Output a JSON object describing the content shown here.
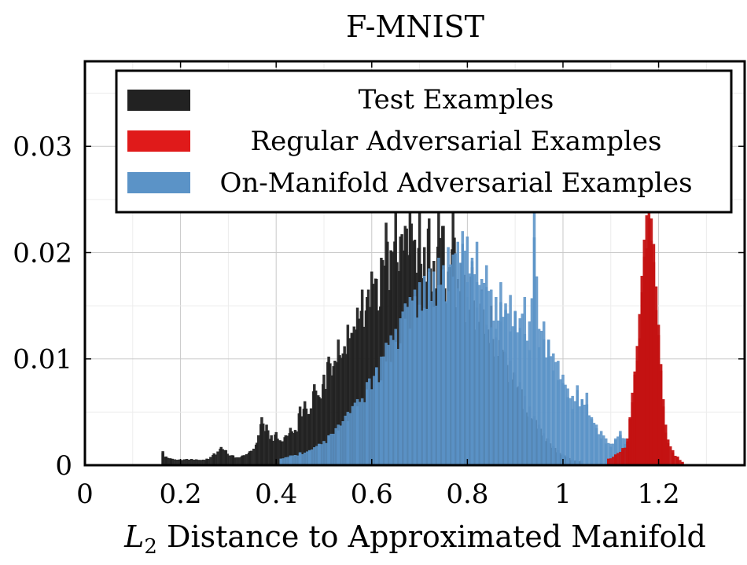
{
  "chart_data": {
    "type": "bar",
    "title": "F-MNIST",
    "xlabel_var": "L",
    "xlabel_sub": "2",
    "xlabel_text": " Distance to Approximated Manifold",
    "ylabel": "",
    "xlim": [
      0,
      1.38
    ],
    "ylim": [
      0,
      0.038
    ],
    "xticks": [
      0,
      0.2,
      0.4,
      0.6,
      0.8,
      1,
      1.2
    ],
    "xtick_labels": [
      "0",
      "0.2",
      "0.4",
      "0.6",
      "0.8",
      "1",
      "1.2"
    ],
    "yticks": [
      0,
      0.01,
      0.02,
      0.03
    ],
    "ytick_labels": [
      "0",
      "0.01",
      "0.02",
      "0.03"
    ],
    "grid": true,
    "legend_position": "top-center",
    "bin_width": 0.005,
    "series": [
      {
        "name": "Test Examples",
        "color": "#222222",
        "peaks": [
          {
            "x": 0.163,
            "y": 0.0013
          },
          {
            "x": 0.17,
            "y": 0.0008
          },
          {
            "x": 0.18,
            "y": 0.0006
          },
          {
            "x": 0.255,
            "y": 0.0006
          },
          {
            "x": 0.27,
            "y": 0.0011
          },
          {
            "x": 0.285,
            "y": 0.0017
          },
          {
            "x": 0.295,
            "y": 0.0014
          },
          {
            "x": 0.31,
            "y": 0.0009
          },
          {
            "x": 0.33,
            "y": 0.0009
          },
          {
            "x": 0.345,
            "y": 0.0013
          },
          {
            "x": 0.36,
            "y": 0.0021
          },
          {
            "x": 0.37,
            "y": 0.0045
          },
          {
            "x": 0.38,
            "y": 0.0038
          },
          {
            "x": 0.39,
            "y": 0.0028
          },
          {
            "x": 0.4,
            "y": 0.0031
          },
          {
            "x": 0.41,
            "y": 0.0022
          },
          {
            "x": 0.42,
            "y": 0.0028
          },
          {
            "x": 0.43,
            "y": 0.0035
          },
          {
            "x": 0.44,
            "y": 0.0033
          },
          {
            "x": 0.45,
            "y": 0.0055
          },
          {
            "x": 0.46,
            "y": 0.006
          },
          {
            "x": 0.47,
            "y": 0.0048
          },
          {
            "x": 0.48,
            "y": 0.0076
          },
          {
            "x": 0.49,
            "y": 0.0064
          },
          {
            "x": 0.5,
            "y": 0.0085
          },
          {
            "x": 0.51,
            "y": 0.0102
          },
          {
            "x": 0.52,
            "y": 0.0093
          },
          {
            "x": 0.53,
            "y": 0.0118
          },
          {
            "x": 0.54,
            "y": 0.0105
          },
          {
            "x": 0.55,
            "y": 0.0132
          },
          {
            "x": 0.56,
            "y": 0.0124
          },
          {
            "x": 0.57,
            "y": 0.0148
          },
          {
            "x": 0.58,
            "y": 0.0165
          },
          {
            "x": 0.59,
            "y": 0.0158
          },
          {
            "x": 0.6,
            "y": 0.0182
          },
          {
            "x": 0.61,
            "y": 0.0175
          },
          {
            "x": 0.62,
            "y": 0.0195
          },
          {
            "x": 0.63,
            "y": 0.0228
          },
          {
            "x": 0.64,
            "y": 0.0202
          },
          {
            "x": 0.65,
            "y": 0.024
          },
          {
            "x": 0.66,
            "y": 0.0215
          },
          {
            "x": 0.67,
            "y": 0.0225
          },
          {
            "x": 0.68,
            "y": 0.0248
          },
          {
            "x": 0.69,
            "y": 0.0212
          },
          {
            "x": 0.7,
            "y": 0.0238
          },
          {
            "x": 0.71,
            "y": 0.0205
          },
          {
            "x": 0.72,
            "y": 0.0232
          },
          {
            "x": 0.73,
            "y": 0.0192
          },
          {
            "x": 0.74,
            "y": 0.0248
          },
          {
            "x": 0.75,
            "y": 0.0225
          },
          {
            "x": 0.76,
            "y": 0.0182
          },
          {
            "x": 0.77,
            "y": 0.0238
          },
          {
            "x": 0.78,
            "y": 0.0175
          },
          {
            "x": 0.79,
            "y": 0.0208
          },
          {
            "x": 0.8,
            "y": 0.0158
          },
          {
            "x": 0.81,
            "y": 0.0186
          },
          {
            "x": 0.82,
            "y": 0.0148
          },
          {
            "x": 0.83,
            "y": 0.0165
          },
          {
            "x": 0.84,
            "y": 0.0132
          },
          {
            "x": 0.85,
            "y": 0.015
          },
          {
            "x": 0.86,
            "y": 0.012
          },
          {
            "x": 0.87,
            "y": 0.0135
          },
          {
            "x": 0.88,
            "y": 0.0105
          },
          {
            "x": 0.89,
            "y": 0.0098
          },
          {
            "x": 0.9,
            "y": 0.0085
          },
          {
            "x": 0.91,
            "y": 0.0078
          },
          {
            "x": 0.92,
            "y": 0.0065
          },
          {
            "x": 0.93,
            "y": 0.0055
          },
          {
            "x": 0.94,
            "y": 0.0046
          },
          {
            "x": 0.95,
            "y": 0.0038
          },
          {
            "x": 0.96,
            "y": 0.003
          },
          {
            "x": 0.97,
            "y": 0.0024
          },
          {
            "x": 0.98,
            "y": 0.0018
          },
          {
            "x": 0.99,
            "y": 0.0014
          },
          {
            "x": 1.0,
            "y": 0.001
          },
          {
            "x": 1.01,
            "y": 0.0008
          },
          {
            "x": 1.02,
            "y": 0.0005
          },
          {
            "x": 1.04,
            "y": 0.0004
          }
        ]
      },
      {
        "name": "Regular Adversarial Examples",
        "color": "#c41212",
        "peaks": [
          {
            "x": 1.095,
            "y": 0.0006
          },
          {
            "x": 1.11,
            "y": 0.001
          },
          {
            "x": 1.125,
            "y": 0.0016
          },
          {
            "x": 1.135,
            "y": 0.0025
          },
          {
            "x": 1.14,
            "y": 0.0045
          },
          {
            "x": 1.145,
            "y": 0.0068
          },
          {
            "x": 1.15,
            "y": 0.0088
          },
          {
            "x": 1.155,
            "y": 0.0112
          },
          {
            "x": 1.16,
            "y": 0.0142
          },
          {
            "x": 1.165,
            "y": 0.0178
          },
          {
            "x": 1.17,
            "y": 0.0212
          },
          {
            "x": 1.175,
            "y": 0.0235
          },
          {
            "x": 1.18,
            "y": 0.0245
          },
          {
            "x": 1.185,
            "y": 0.0232
          },
          {
            "x": 1.19,
            "y": 0.0208
          },
          {
            "x": 1.195,
            "y": 0.0168
          },
          {
            "x": 1.2,
            "y": 0.0132
          },
          {
            "x": 1.205,
            "y": 0.0095
          },
          {
            "x": 1.21,
            "y": 0.0062
          },
          {
            "x": 1.215,
            "y": 0.0038
          },
          {
            "x": 1.22,
            "y": 0.0024
          },
          {
            "x": 1.23,
            "y": 0.0014
          },
          {
            "x": 1.24,
            "y": 0.0008
          },
          {
            "x": 1.25,
            "y": 0.0003
          }
        ]
      },
      {
        "name": "On-Manifold Adversarial Examples",
        "color": "#5b93c7",
        "peaks": [
          {
            "x": 0.41,
            "y": 0.0006
          },
          {
            "x": 0.43,
            "y": 0.0009
          },
          {
            "x": 0.45,
            "y": 0.0012
          },
          {
            "x": 0.47,
            "y": 0.0014
          },
          {
            "x": 0.49,
            "y": 0.002
          },
          {
            "x": 0.51,
            "y": 0.0028
          },
          {
            "x": 0.53,
            "y": 0.0038
          },
          {
            "x": 0.55,
            "y": 0.005
          },
          {
            "x": 0.57,
            "y": 0.0062
          },
          {
            "x": 0.59,
            "y": 0.0078
          },
          {
            "x": 0.61,
            "y": 0.0092
          },
          {
            "x": 0.62,
            "y": 0.0102
          },
          {
            "x": 0.63,
            "y": 0.0115
          },
          {
            "x": 0.64,
            "y": 0.0122
          },
          {
            "x": 0.65,
            "y": 0.0128
          },
          {
            "x": 0.66,
            "y": 0.0138
          },
          {
            "x": 0.67,
            "y": 0.0152
          },
          {
            "x": 0.68,
            "y": 0.0158
          },
          {
            "x": 0.69,
            "y": 0.0165
          },
          {
            "x": 0.7,
            "y": 0.0172
          },
          {
            "x": 0.71,
            "y": 0.0178
          },
          {
            "x": 0.72,
            "y": 0.0185
          },
          {
            "x": 0.73,
            "y": 0.0182
          },
          {
            "x": 0.74,
            "y": 0.0195
          },
          {
            "x": 0.75,
            "y": 0.0188
          },
          {
            "x": 0.76,
            "y": 0.0205
          },
          {
            "x": 0.77,
            "y": 0.0198
          },
          {
            "x": 0.78,
            "y": 0.021
          },
          {
            "x": 0.79,
            "y": 0.022
          },
          {
            "x": 0.8,
            "y": 0.0215
          },
          {
            "x": 0.81,
            "y": 0.0195
          },
          {
            "x": 0.82,
            "y": 0.021
          },
          {
            "x": 0.83,
            "y": 0.0175
          },
          {
            "x": 0.84,
            "y": 0.0188
          },
          {
            "x": 0.85,
            "y": 0.0165
          },
          {
            "x": 0.86,
            "y": 0.0158
          },
          {
            "x": 0.87,
            "y": 0.0172
          },
          {
            "x": 0.88,
            "y": 0.0152
          },
          {
            "x": 0.89,
            "y": 0.016
          },
          {
            "x": 0.9,
            "y": 0.0145
          },
          {
            "x": 0.91,
            "y": 0.0138
          },
          {
            "x": 0.92,
            "y": 0.0158
          },
          {
            "x": 0.93,
            "y": 0.0135
          },
          {
            "x": 0.94,
            "y": 0.0238
          },
          {
            "x": 0.95,
            "y": 0.0128
          },
          {
            "x": 0.96,
            "y": 0.0135
          },
          {
            "x": 0.97,
            "y": 0.0118
          },
          {
            "x": 0.98,
            "y": 0.0105
          },
          {
            "x": 0.99,
            "y": 0.0098
          },
          {
            "x": 1.0,
            "y": 0.0085
          },
          {
            "x": 1.01,
            "y": 0.0072
          },
          {
            "x": 1.02,
            "y": 0.0065
          },
          {
            "x": 1.03,
            "y": 0.0075
          },
          {
            "x": 1.04,
            "y": 0.0062
          },
          {
            "x": 1.05,
            "y": 0.0068
          },
          {
            "x": 1.06,
            "y": 0.0045
          },
          {
            "x": 1.07,
            "y": 0.0038
          },
          {
            "x": 1.08,
            "y": 0.0032
          },
          {
            "x": 1.09,
            "y": 0.0025
          },
          {
            "x": 1.1,
            "y": 0.002
          },
          {
            "x": 1.11,
            "y": 0.0025
          },
          {
            "x": 1.12,
            "y": 0.0032
          },
          {
            "x": 1.13,
            "y": 0.0025
          },
          {
            "x": 1.14,
            "y": 0.0018
          },
          {
            "x": 1.15,
            "y": 0.0012
          },
          {
            "x": 1.16,
            "y": 0.0008
          },
          {
            "x": 1.18,
            "y": 0.0003
          }
        ]
      }
    ]
  }
}
